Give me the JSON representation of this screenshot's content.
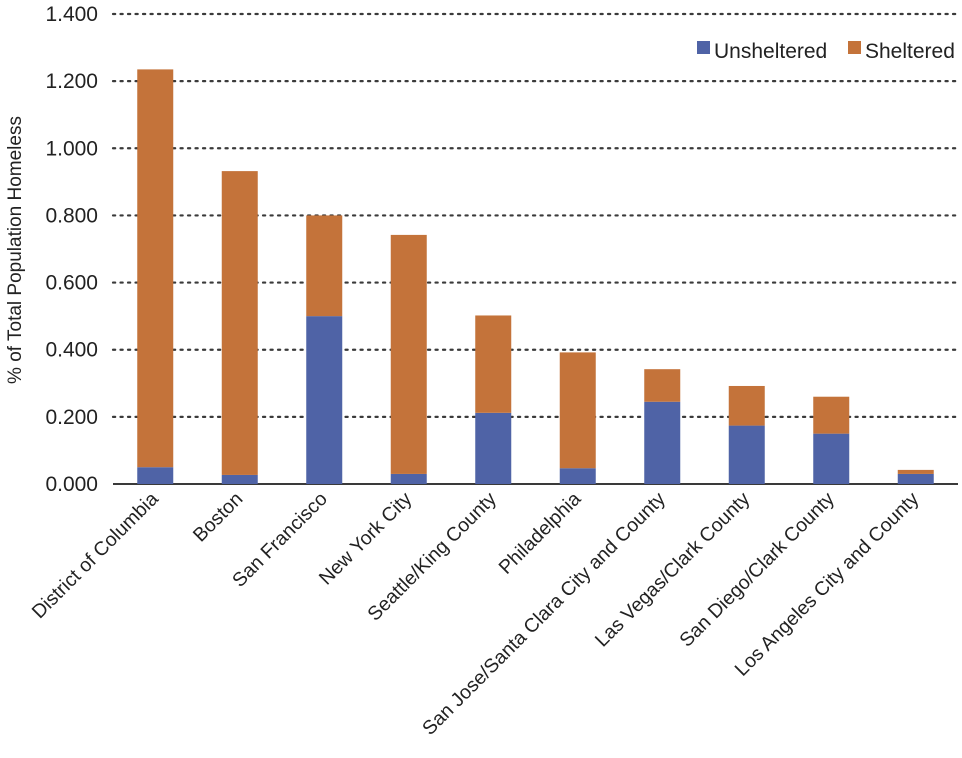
{
  "chart_data": {
    "type": "bar",
    "stacked": true,
    "title": "",
    "xlabel": "",
    "ylabel": "% of Total Population Homeless",
    "ylim": [
      0,
      1.4
    ],
    "yticks": [
      "0.000",
      "0.200",
      "0.400",
      "0.600",
      "0.800",
      "1.000",
      "1.200",
      "1.400"
    ],
    "ytick_values": [
      0,
      0.2,
      0.4,
      0.6,
      0.8,
      1.0,
      1.2,
      1.4
    ],
    "grid": true,
    "legend_position": "top-right",
    "categories": [
      "District of Columbia",
      "Boston",
      "San Francisco",
      "New York City",
      "Seattle/King County",
      "Philadelphia",
      "San Jose/Santa Clara City and County",
      "Las Vegas/Clark County",
      "San Diego/Clark County",
      "Los Angeles City and County"
    ],
    "series": [
      {
        "name": "Unsheltered",
        "color": "#4f63a6",
        "values": [
          0.05,
          0.027,
          0.5,
          0.03,
          0.212,
          0.047,
          0.245,
          0.174,
          0.15,
          0.03
        ]
      },
      {
        "name": "Sheltered",
        "color": "#c4733a",
        "values": [
          1.185,
          0.905,
          0.3,
          0.712,
          0.29,
          0.345,
          0.097,
          0.118,
          0.11,
          0.012
        ]
      }
    ]
  }
}
